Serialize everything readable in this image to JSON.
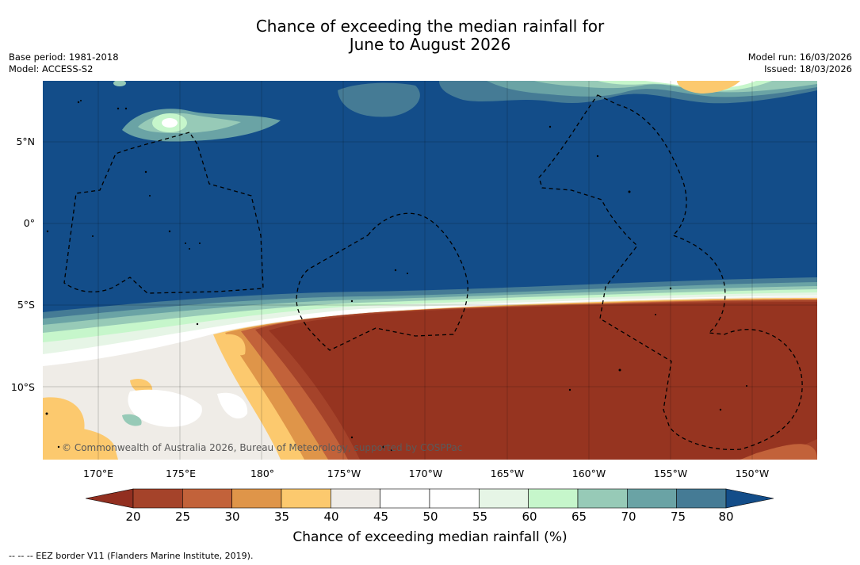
{
  "title_line1": "Chance of exceeding the median rainfall for",
  "title_line2": "June to August 2026",
  "meta": {
    "base_period": "Base period: 1981-2018",
    "model": "Model: ACCESS-S2",
    "model_run": "Model run: 16/03/2026",
    "issued": "Issued: 18/03/2026"
  },
  "latitude_labels": [
    "5°N",
    "0°",
    "5°S",
    "10°S"
  ],
  "longitude_labels": [
    "170°E",
    "175°E",
    "180°",
    "175°W",
    "170°W",
    "165°W",
    "160°W",
    "155°W",
    "150°W"
  ],
  "copyright": "© Commonwealth of Australia 2026, Bureau of Meteorology, supported by COSPPac",
  "colorbar": {
    "label": "Chance of exceeding median rainfall (%)",
    "ticks": [
      "20",
      "25",
      "30",
      "35",
      "40",
      "45",
      "50",
      "55",
      "60",
      "65",
      "70",
      "75",
      "80"
    ],
    "colors": [
      "#a5432a",
      "#c2623a",
      "#df9549",
      "#fcc96e",
      "#efece7",
      "#ffffff",
      "#ffffff",
      "#e6f5e6",
      "#c6f6cb",
      "#97cab7",
      "#6aa3a5",
      "#457b95"
    ],
    "extend_low_color": "#922f20",
    "extend_high_color": "#134d89"
  },
  "map_colors": {
    "high": "#134d89",
    "low": "#963420"
  },
  "footnote": "--  --  -- EEZ border V11 (Flanders Marine Institute, 2019)."
}
